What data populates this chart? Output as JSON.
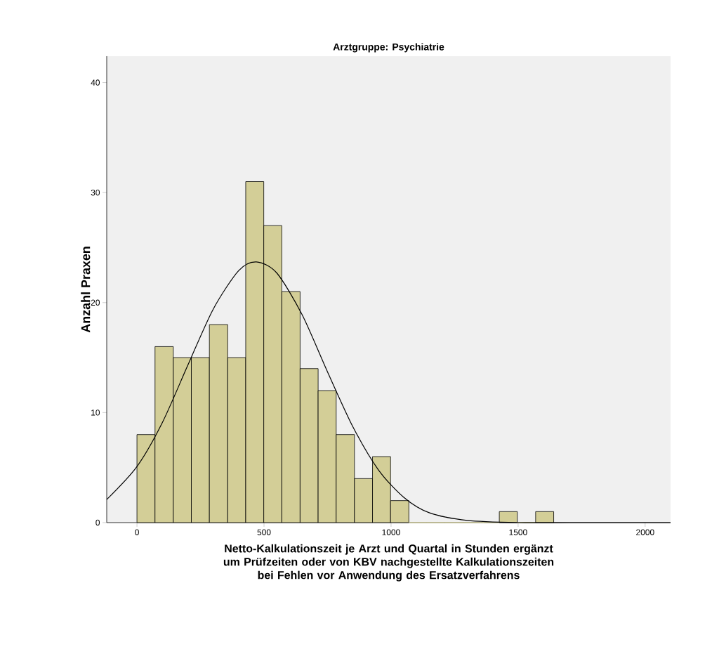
{
  "chart_data": {
    "type": "histogram",
    "title": "Arztgruppe: Psychiatrie",
    "xlabel": "Netto-Kalkulationszeit je Arzt und Quartal in Stunden ergänzt um Prüfzeiten oder von KBV nachgestellte Kalkulationszeiten bei Fehlen vor Anwendung des Ersatzverfahrens",
    "ylabel": "Anzahl Praxen",
    "bins": [
      0,
      71,
      143,
      214,
      285,
      357,
      428,
      499,
      570,
      642,
      713,
      784,
      856,
      927,
      998,
      1070,
      1141,
      1212,
      1283,
      1355,
      1426,
      1497,
      1569,
      1640
    ],
    "values": [
      8,
      16,
      15,
      15,
      18,
      15,
      31,
      27,
      21,
      14,
      12,
      8,
      4,
      6,
      2,
      0,
      0,
      0,
      0,
      0,
      1,
      0,
      1
    ],
    "color": "#d3ce97",
    "series": [
      {
        "type": "line",
        "color": "#000000",
        "x": [
          -119,
          0,
          100,
          200,
          300,
          400,
          470,
          550,
          650,
          750,
          850,
          950,
          1050,
          1150,
          1300,
          1500,
          1700,
          2100
        ],
        "values": [
          2.1,
          5.1,
          9.1,
          14.3,
          19.4,
          22.9,
          23.7,
          22.7,
          18.9,
          13.7,
          8.7,
          4.8,
          2.3,
          0.9,
          0.2,
          0,
          0,
          0
        ]
      }
    ],
    "xlim": [
      -119,
      2100
    ],
    "ylim": [
      0,
      42.4
    ],
    "xticks": [
      0,
      500,
      1000,
      1500,
      2000
    ],
    "yticks": [
      0,
      10,
      20,
      30,
      40
    ]
  }
}
